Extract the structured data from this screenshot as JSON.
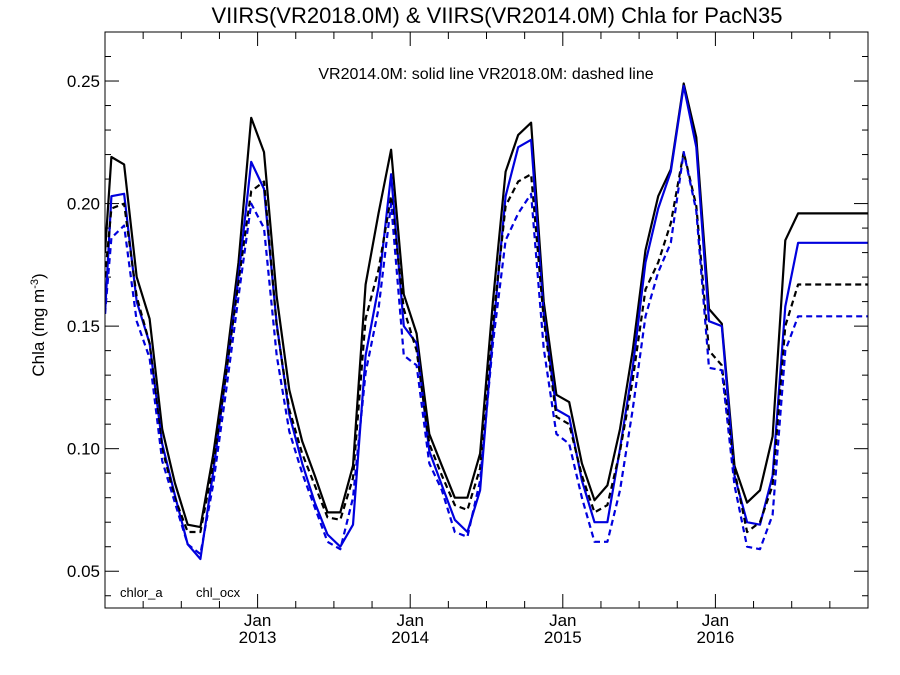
{
  "chart_data": {
    "type": "line",
    "title": "VIIRS(VR2018.0M) & VIIRS(VR2014.0M)  Chla for PacN35",
    "ylabel_main": "Chla (mg m",
    "ylabel_sup": "-3",
    "ylabel_close": ")",
    "annotation": "VR2014.0M: solid line   VR2018.0M: dashed line",
    "ylim": [
      0.035,
      0.27
    ],
    "xlim": [
      2012.0,
      2017.0
    ],
    "yticks": [
      {
        "value": 0.05,
        "label": "0.05"
      },
      {
        "value": 0.1,
        "label": "0.10"
      },
      {
        "value": 0.15,
        "label": "0.15"
      },
      {
        "value": 0.2,
        "label": "0.20"
      },
      {
        "value": 0.25,
        "label": "0.25"
      }
    ],
    "xticks": [
      {
        "value": 2013.0,
        "month": "Jan",
        "year": "2013"
      },
      {
        "value": 2014.0,
        "month": "Jan",
        "year": "2014"
      },
      {
        "value": 2015.0,
        "month": "Jan",
        "year": "2015"
      },
      {
        "value": 2016.0,
        "month": "Jan",
        "year": "2016"
      }
    ],
    "colors": {
      "chlor_a": "#000000",
      "chl_ocx": "#0000dd"
    },
    "legend": [
      {
        "name": "chlor_a",
        "color": "#000000"
      },
      {
        "name": "chl_ocx",
        "color": "#0000dd"
      }
    ],
    "x": [
      2012.0,
      2012.042,
      2012.125,
      2012.208,
      2012.292,
      2012.375,
      2012.458,
      2012.542,
      2012.625,
      2012.708,
      2012.792,
      2012.875,
      2012.958,
      2013.042,
      2013.125,
      2013.208,
      2013.292,
      2013.375,
      2013.458,
      2013.542,
      2013.625,
      2013.708,
      2013.792,
      2013.875,
      2013.958,
      2014.042,
      2014.125,
      2014.208,
      2014.292,
      2014.375,
      2014.458,
      2014.542,
      2014.625,
      2014.708,
      2014.792,
      2014.875,
      2014.958,
      2015.042,
      2015.125,
      2015.208,
      2015.292,
      2015.375,
      2015.458,
      2015.542,
      2015.625,
      2015.708,
      2015.792,
      2015.875,
      2015.958,
      2016.042,
      2016.125,
      2016.208,
      2016.292,
      2016.375,
      2016.458,
      2016.542,
      2016.625,
      2016.708,
      2016.792,
      2016.875,
      2016.958,
      2017.0
    ],
    "series": [
      {
        "name": "chlor_a",
        "style": "solid",
        "color": "#000000",
        "values": [
          0.18,
          0.219,
          0.216,
          0.17,
          0.153,
          0.108,
          0.086,
          0.069,
          0.068,
          0.097,
          0.134,
          0.176,
          0.235,
          0.221,
          0.162,
          0.124,
          0.103,
          0.089,
          0.074,
          0.074,
          0.093,
          0.167,
          0.196,
          0.222,
          0.163,
          0.147,
          0.106,
          0.093,
          0.08,
          0.08,
          0.098,
          0.16,
          0.213,
          0.228,
          0.233,
          0.16,
          0.122,
          0.119,
          0.094,
          0.079,
          0.085,
          0.108,
          0.14,
          0.181,
          0.203,
          0.214,
          0.249,
          0.227,
          0.157,
          0.151,
          0.093,
          0.078,
          0.083,
          0.105,
          0.185,
          0.196,
          0.196,
          0.196,
          0.196,
          0.196,
          0.196,
          0.196
        ]
      },
      {
        "name": "chl_ocx",
        "style": "solid",
        "color": "#0000dd",
        "values": [
          0.155,
          0.203,
          0.204,
          0.16,
          0.143,
          0.102,
          0.081,
          0.061,
          0.055,
          0.09,
          0.13,
          0.17,
          0.217,
          0.206,
          0.151,
          0.114,
          0.094,
          0.078,
          0.065,
          0.06,
          0.069,
          0.138,
          0.166,
          0.212,
          0.15,
          0.143,
          0.099,
          0.085,
          0.071,
          0.066,
          0.083,
          0.147,
          0.203,
          0.223,
          0.226,
          0.155,
          0.116,
          0.113,
          0.087,
          0.07,
          0.07,
          0.1,
          0.133,
          0.176,
          0.198,
          0.213,
          0.248,
          0.223,
          0.152,
          0.15,
          0.089,
          0.07,
          0.069,
          0.089,
          0.158,
          0.184,
          0.184,
          0.184,
          0.184,
          0.184,
          0.184,
          0.184
        ]
      },
      {
        "name": "chlor_a",
        "style": "dashed",
        "color": "#000000",
        "values": [
          0.17,
          0.198,
          0.2,
          0.162,
          0.143,
          0.1,
          0.08,
          0.066,
          0.066,
          0.093,
          0.13,
          0.168,
          0.205,
          0.209,
          0.15,
          0.116,
          0.098,
          0.085,
          0.072,
          0.071,
          0.088,
          0.153,
          0.173,
          0.203,
          0.157,
          0.14,
          0.102,
          0.089,
          0.077,
          0.075,
          0.092,
          0.151,
          0.199,
          0.209,
          0.212,
          0.153,
          0.113,
          0.11,
          0.089,
          0.074,
          0.077,
          0.099,
          0.128,
          0.165,
          0.176,
          0.192,
          0.221,
          0.199,
          0.14,
          0.134,
          0.091,
          0.066,
          0.07,
          0.085,
          0.15,
          0.167,
          0.167,
          0.167,
          0.167,
          0.167,
          0.167,
          0.167
        ]
      },
      {
        "name": "chl_ocx",
        "style": "dashed",
        "color": "#0000dd",
        "values": [
          0.155,
          0.186,
          0.191,
          0.152,
          0.137,
          0.095,
          0.078,
          0.061,
          0.057,
          0.085,
          0.123,
          0.162,
          0.2,
          0.19,
          0.138,
          0.107,
          0.09,
          0.076,
          0.062,
          0.059,
          0.08,
          0.131,
          0.157,
          0.2,
          0.138,
          0.134,
          0.094,
          0.083,
          0.066,
          0.064,
          0.087,
          0.143,
          0.185,
          0.196,
          0.204,
          0.141,
          0.106,
          0.102,
          0.08,
          0.062,
          0.062,
          0.083,
          0.116,
          0.154,
          0.172,
          0.184,
          0.221,
          0.197,
          0.133,
          0.132,
          0.085,
          0.06,
          0.059,
          0.073,
          0.14,
          0.154,
          0.154,
          0.154,
          0.154,
          0.154,
          0.154,
          0.154
        ]
      }
    ]
  }
}
